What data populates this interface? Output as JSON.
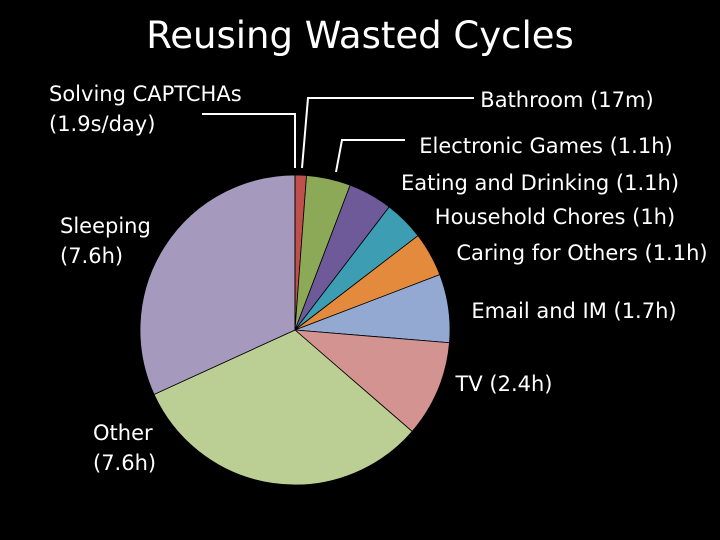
{
  "slide": {
    "title": "Reusing Wasted Cycles"
  },
  "chart_data": {
    "type": "pie",
    "title": "Reusing Wasted Cycles",
    "slices": [
      {
        "category": "Bathroom",
        "value_hours": 0.2833,
        "label_lines": [
          "Bathroom (17m)"
        ],
        "color": "#C0504D"
      },
      {
        "category": "Electronic Games",
        "value_hours": 1.1,
        "label_lines": [
          "Electronic Games (1.1h)"
        ],
        "color": "#8CA957"
      },
      {
        "category": "Eating and Drinking",
        "value_hours": 1.1,
        "label_lines": [
          "Eating and Drinking (1.1h)"
        ],
        "color": "#6F5A99"
      },
      {
        "category": "Household Chores",
        "value_hours": 1.0,
        "label_lines": [
          "Household Chores (1h)"
        ],
        "color": "#3D9DB3"
      },
      {
        "category": "Caring for Others",
        "value_hours": 1.1,
        "label_lines": [
          "Caring for Others (1.1h)"
        ],
        "color": "#E48A3D"
      },
      {
        "category": "Email and IM",
        "value_hours": 1.7,
        "label_lines": [
          "Email and IM (1.7h)"
        ],
        "color": "#93A9D2"
      },
      {
        "category": "TV",
        "value_hours": 2.4,
        "label_lines": [
          "TV (2.4h)"
        ],
        "color": "#D39391"
      },
      {
        "category": "Other",
        "value_hours": 7.6,
        "label_lines": [
          "Other",
          "(7.6h)"
        ],
        "color": "#BBCE93"
      },
      {
        "category": "Sleeping",
        "value_hours": 7.6,
        "label_lines": [
          "Sleeping",
          "(7.6h)"
        ],
        "color": "#A599BE"
      },
      {
        "category": "Solving CAPTCHAs",
        "value_hours": 0.000528,
        "label_lines": [
          "Solving CAPTCHAs",
          "(1.9s/day)"
        ],
        "color": "#000000"
      }
    ]
  }
}
